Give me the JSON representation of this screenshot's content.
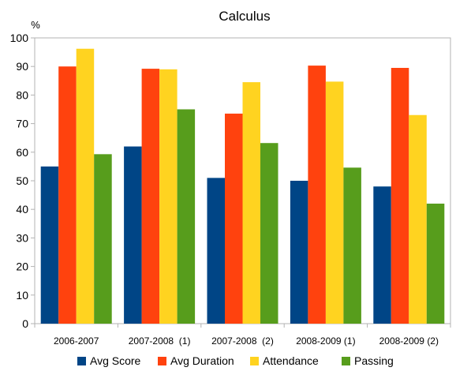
{
  "chart_data": {
    "type": "bar",
    "title": "Calculus",
    "ylabel": "%",
    "xlabel": "",
    "ylim": [
      0,
      100
    ],
    "yticks": [
      0,
      10,
      20,
      30,
      40,
      50,
      60,
      70,
      80,
      90,
      100
    ],
    "categories": [
      "2006-2007",
      "2007-2008  (1)",
      "2007-2008  (2)",
      "2008-2009 (1)",
      "2008-2009 (2)"
    ],
    "series": [
      {
        "name": "Avg Score",
        "color": "#004586",
        "values": [
          55,
          62,
          51,
          50,
          48
        ]
      },
      {
        "name": "Avg Duration",
        "color": "#ff420e",
        "values": [
          90,
          89.2,
          73.5,
          90.3,
          89.5
        ]
      },
      {
        "name": "Attendance",
        "color": "#ffd320",
        "values": [
          96.2,
          89,
          84.5,
          84.7,
          73
        ]
      },
      {
        "name": "Passing",
        "color": "#579d1c",
        "values": [
          59.3,
          75,
          63.2,
          54.6,
          42
        ]
      }
    ],
    "grid": false,
    "legend_position": "bottom"
  }
}
